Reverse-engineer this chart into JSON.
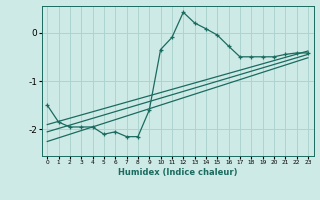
{
  "xlabel": "Humidex (Indice chaleur)",
  "ylabel": "",
  "bg_color": "#ceeae6",
  "grid_color": "#aed4d0",
  "line_color": "#1a6b60",
  "xlim": [
    -0.5,
    23.5
  ],
  "ylim": [
    -2.55,
    0.55
  ],
  "yticks": [
    -2,
    -1,
    0
  ],
  "xticks": [
    0,
    1,
    2,
    3,
    4,
    5,
    6,
    7,
    8,
    9,
    10,
    11,
    12,
    13,
    14,
    15,
    16,
    17,
    18,
    19,
    20,
    21,
    22,
    23
  ],
  "data_x": [
    0,
    1,
    2,
    3,
    4,
    5,
    6,
    7,
    8,
    9,
    10,
    11,
    12,
    13,
    14,
    15,
    16,
    17,
    18,
    19,
    20,
    21,
    22,
    23
  ],
  "data_y": [
    -1.5,
    -1.85,
    -1.95,
    -1.95,
    -1.95,
    -2.1,
    -2.05,
    -2.15,
    -2.15,
    -1.6,
    -0.35,
    -0.1,
    0.42,
    0.2,
    0.08,
    -0.05,
    -0.28,
    -0.5,
    -0.5,
    -0.5,
    -0.5,
    -0.45,
    -0.42,
    -0.42
  ],
  "trend1_x": [
    0,
    23
  ],
  "trend1_y": [
    -1.9,
    -0.38
  ],
  "trend2_x": [
    0,
    23
  ],
  "trend2_y": [
    -2.05,
    -0.45
  ],
  "trend3_x": [
    0,
    23
  ],
  "trend3_y": [
    -2.25,
    -0.52
  ]
}
